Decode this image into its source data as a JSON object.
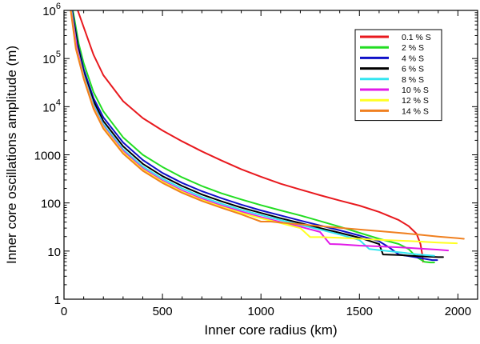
{
  "chart_data": {
    "type": "line",
    "title": "",
    "xlabel": "Inner core radius (km)",
    "ylabel": "Inner core oscillations amplitude (m)",
    "xlim": [
      0,
      2100
    ],
    "ylim": [
      1,
      1000000
    ],
    "yscale": "log",
    "grid": false,
    "legend_position": "top-right",
    "x_ticks": [
      0,
      500,
      1000,
      1500,
      2000
    ],
    "x_tick_labels": [
      "0",
      "500",
      "1000",
      "1500",
      "2000"
    ],
    "y_ticks": [
      1,
      10,
      100,
      1000,
      10000,
      100000,
      1000000
    ],
    "y_tick_labels": [
      {
        "base": "1",
        "exp": ""
      },
      {
        "base": "10",
        "exp": ""
      },
      {
        "base": "100",
        "exp": ""
      },
      {
        "base": "1000",
        "exp": ""
      },
      {
        "base": "10",
        "exp": "4"
      },
      {
        "base": "10",
        "exp": "5"
      },
      {
        "base": "10",
        "exp": "6"
      }
    ],
    "series": [
      {
        "name": "0.1 % S",
        "color": "#e8191e",
        "x": [
          70,
          100,
          150,
          200,
          300,
          400,
          500,
          600,
          700,
          800,
          900,
          1000,
          1100,
          1200,
          1300,
          1400,
          1500,
          1600,
          1700,
          1750,
          1790,
          1810,
          1820,
          1823
        ],
        "y": [
          1000000,
          450000,
          120000,
          45000,
          13000,
          5800,
          3200,
          1900,
          1180,
          760,
          500,
          350,
          250,
          190,
          145,
          112,
          88,
          65,
          44,
          33,
          23,
          14,
          8,
          6
        ]
      },
      {
        "name": "2 % S",
        "color": "#22dd22",
        "x": [
          45,
          75,
          100,
          150,
          200,
          300,
          400,
          500,
          600,
          700,
          800,
          900,
          1000,
          1100,
          1200,
          1300,
          1400,
          1500,
          1600,
          1700,
          1750,
          1790,
          1830,
          1860,
          1880
        ],
        "y": [
          1000000,
          200000,
          80000,
          20000,
          8000,
          2300,
          1000,
          560,
          340,
          225,
          158,
          118,
          90,
          70,
          55,
          42,
          32,
          24,
          18,
          14,
          11,
          7.5,
          6,
          5.8,
          5.8
        ]
      },
      {
        "name": "4 % S",
        "color": "#0f10c8",
        "x": [
          42,
          70,
          100,
          150,
          200,
          300,
          400,
          500,
          600,
          700,
          800,
          900,
          1000,
          1100,
          1200,
          1300,
          1400,
          1500,
          1600,
          1650,
          1700,
          1800,
          1870,
          1895
        ],
        "y": [
          1000000,
          200000,
          60000,
          15000,
          6000,
          1800,
          780,
          420,
          260,
          175,
          125,
          92,
          70,
          55,
          43,
          34,
          27,
          21,
          16,
          12,
          8.5,
          7.3,
          6.5,
          6.5
        ]
      },
      {
        "name": "6 % S",
        "color": "#000000",
        "x": [
          40,
          70,
          100,
          150,
          200,
          300,
          400,
          500,
          600,
          700,
          800,
          900,
          1000,
          1100,
          1200,
          1300,
          1400,
          1500,
          1600,
          1620,
          1700,
          1800,
          1900,
          1925
        ],
        "y": [
          1000000,
          180000,
          50000,
          13000,
          5000,
          1500,
          650,
          360,
          225,
          150,
          108,
          80,
          62,
          48,
          38,
          30,
          24,
          19,
          14,
          8.5,
          8.3,
          7.8,
          7.5,
          7.5
        ]
      },
      {
        "name": "8 % S",
        "color": "#33e5f0",
        "x": [
          38,
          65,
          100,
          150,
          200,
          300,
          400,
          500,
          600,
          700,
          800,
          900,
          1000,
          1100,
          1200,
          1300,
          1400,
          1500,
          1550,
          1600,
          1700,
          1800,
          1880
        ],
        "y": [
          1000000,
          180000,
          45000,
          11000,
          4300,
          1300,
          570,
          320,
          200,
          133,
          96,
          72,
          56,
          44,
          35,
          28,
          22,
          17,
          11,
          10.5,
          9.5,
          8.5,
          8
        ]
      },
      {
        "name": "10 % S",
        "color": "#e11be8",
        "x": [
          36,
          65,
          100,
          150,
          200,
          300,
          400,
          500,
          600,
          700,
          800,
          900,
          1000,
          1100,
          1200,
          1300,
          1350,
          1400,
          1500,
          1600,
          1700,
          1800,
          1900,
          1950
        ],
        "y": [
          1000000,
          170000,
          42000,
          10000,
          3900,
          1200,
          520,
          290,
          180,
          122,
          88,
          66,
          51,
          40,
          32,
          25,
          14,
          13.8,
          13,
          12.5,
          12,
          11.3,
          10.7,
          10.3
        ]
      },
      {
        "name": "12 % S",
        "color": "#ffff22",
        "x": [
          35,
          60,
          100,
          150,
          200,
          300,
          400,
          500,
          600,
          700,
          800,
          900,
          1000,
          1100,
          1200,
          1250,
          1300,
          1400,
          1500,
          1600,
          1700,
          1800,
          1900,
          1995
        ],
        "y": [
          1000000,
          170000,
          40000,
          9500,
          3700,
          1120,
          490,
          275,
          170,
          115,
          83,
          62,
          48,
          38,
          30,
          19.5,
          19.5,
          18.8,
          18,
          17.2,
          16.5,
          15.8,
          15,
          14.5
        ]
      },
      {
        "name": "14 % S",
        "color": "#f08020",
        "x": [
          34,
          60,
          100,
          150,
          200,
          300,
          400,
          500,
          600,
          700,
          800,
          900,
          1000,
          1050,
          1100,
          1200,
          1300,
          1400,
          1500,
          1600,
          1700,
          1800,
          1900,
          2000,
          2030
        ],
        "y": [
          1000000,
          160000,
          38000,
          9000,
          3500,
          1060,
          465,
          260,
          162,
          110,
          79,
          58,
          41,
          41,
          39,
          36,
          33,
          30.5,
          28,
          26,
          24,
          22,
          20,
          18.5,
          18
        ]
      }
    ]
  }
}
